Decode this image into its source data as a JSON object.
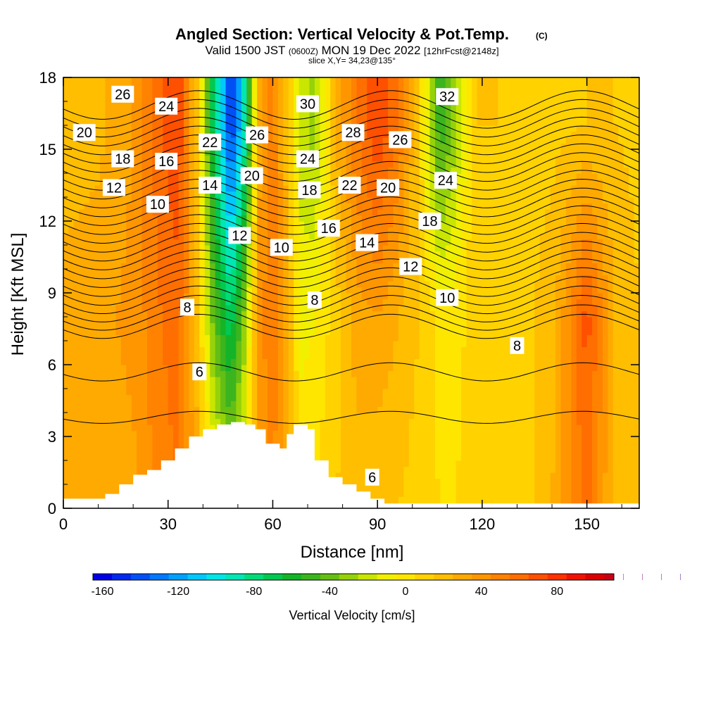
{
  "chart_data": {
    "type": "heatmap",
    "title": "Angled Section: Vertical Velocity & Pot.Temp.",
    "title_mark": "(C)",
    "subtitle_parts": [
      "Valid 1500 JST",
      "(0600Z)",
      "MON 19 Dec 2022",
      "[12hrFcst@2148z]"
    ],
    "slice_label": "slice X,Y= 34,23@135°",
    "xlabel": "Distance [nm]",
    "ylabel": "Height [Kft MSL]",
    "xlim": [
      0,
      165
    ],
    "ylim": [
      0,
      18
    ],
    "x_ticks": [
      0,
      30,
      60,
      90,
      120,
      150
    ],
    "y_ticks": [
      0,
      3,
      6,
      9,
      12,
      15,
      18
    ],
    "colorbar": {
      "label": "Vertical Velocity [cm/s]",
      "min": -165,
      "max": 110,
      "step": 10,
      "tick_values": [
        -160,
        -120,
        -80,
        -40,
        0,
        40,
        80
      ],
      "tick_labels": [
        "-160",
        "-120",
        "-80",
        "-40",
        "0",
        "40",
        "80"
      ],
      "colors": [
        "#0000e6",
        "#0028f0",
        "#0050f5",
        "#0078ff",
        "#00a0ff",
        "#00c8ff",
        "#00e6e6",
        "#00e6b4",
        "#00dc78",
        "#00c850",
        "#14b428",
        "#3cb41e",
        "#64be14",
        "#96d20a",
        "#c8e600",
        "#f0f000",
        "#ffe600",
        "#ffd200",
        "#ffbe00",
        "#ffaa00",
        "#ff9600",
        "#ff8200",
        "#ff6e00",
        "#ff5000",
        "#ff3200",
        "#f01400",
        "#dc0000",
        "#c80014",
        "#aa0050",
        "#8c0078",
        "#64008c",
        "#50008c"
      ]
    },
    "vertical_velocity_profile": {
      "x": [
        0,
        10,
        20,
        28,
        33,
        38,
        43,
        48,
        52,
        56,
        60,
        64,
        68,
        72,
        78,
        84,
        90,
        96,
        102,
        108,
        112,
        118,
        125,
        132,
        140,
        150,
        158,
        165
      ],
      "low_level": [
        25,
        28,
        32,
        50,
        55,
        30,
        0,
        -20,
        0,
        35,
        45,
        25,
        5,
        5,
        15,
        20,
        15,
        15,
        10,
        5,
        5,
        10,
        8,
        10,
        25,
        60,
        20,
        15
      ],
      "mid_level": [
        30,
        32,
        38,
        55,
        60,
        25,
        -40,
        -75,
        -30,
        40,
        55,
        30,
        -10,
        -5,
        10,
        30,
        35,
        25,
        15,
        0,
        0,
        10,
        10,
        12,
        20,
        70,
        25,
        15
      ],
      "upper_level": [
        18,
        22,
        35,
        65,
        75,
        20,
        -70,
        -150,
        -90,
        30,
        50,
        20,
        -20,
        -30,
        25,
        55,
        75,
        55,
        10,
        -55,
        -30,
        15,
        15,
        12,
        12,
        15,
        15,
        12
      ]
    },
    "potential_temperature_contours": {
      "unit": "C",
      "levels": [
        6,
        8,
        10,
        12,
        14,
        16,
        18,
        20,
        22,
        24,
        26,
        28,
        30,
        32
      ],
      "labels": [
        {
          "text": "20",
          "x": 6,
          "y": 15.7
        },
        {
          "text": "26",
          "x": 17,
          "y": 17.3
        },
        {
          "text": "24",
          "x": 29.5,
          "y": 16.8
        },
        {
          "text": "18",
          "x": 17,
          "y": 14.6
        },
        {
          "text": "16",
          "x": 29.5,
          "y": 14.5
        },
        {
          "text": "12",
          "x": 14.5,
          "y": 13.4
        },
        {
          "text": "10",
          "x": 27,
          "y": 12.7
        },
        {
          "text": "22",
          "x": 42,
          "y": 15.3
        },
        {
          "text": "14",
          "x": 42,
          "y": 13.5
        },
        {
          "text": "26",
          "x": 55.5,
          "y": 15.6
        },
        {
          "text": "20",
          "x": 54,
          "y": 13.9
        },
        {
          "text": "12",
          "x": 50.5,
          "y": 11.4
        },
        {
          "text": "30",
          "x": 70,
          "y": 16.9
        },
        {
          "text": "24",
          "x": 70,
          "y": 14.6
        },
        {
          "text": "18",
          "x": 70.5,
          "y": 13.3
        },
        {
          "text": "10",
          "x": 62.5,
          "y": 10.9
        },
        {
          "text": "28",
          "x": 83,
          "y": 15.7
        },
        {
          "text": "22",
          "x": 82,
          "y": 13.5
        },
        {
          "text": "16",
          "x": 76,
          "y": 11.7
        },
        {
          "text": "26",
          "x": 96.5,
          "y": 15.4
        },
        {
          "text": "20",
          "x": 93,
          "y": 13.4
        },
        {
          "text": "14",
          "x": 87,
          "y": 11.1
        },
        {
          "text": "32",
          "x": 110,
          "y": 17.2
        },
        {
          "text": "24",
          "x": 109.5,
          "y": 13.7
        },
        {
          "text": "18",
          "x": 105,
          "y": 12.0
        },
        {
          "text": "12",
          "x": 99.5,
          "y": 10.1
        },
        {
          "text": "10",
          "x": 110,
          "y": 8.8
        },
        {
          "text": "8",
          "x": 35.5,
          "y": 8.4
        },
        {
          "text": "8",
          "x": 72,
          "y": 8.7
        },
        {
          "text": "8",
          "x": 130,
          "y": 6.8
        },
        {
          "text": "6",
          "x": 39,
          "y": 5.7
        },
        {
          "text": "6",
          "x": 88.5,
          "y": 1.3
        }
      ]
    },
    "terrain": {
      "x": [
        0,
        8,
        12,
        16,
        20,
        24,
        28,
        32,
        36,
        40,
        44,
        48,
        52,
        55,
        58,
        62,
        64,
        66,
        70,
        72,
        76,
        80,
        84,
        88,
        92,
        165
      ],
      "height": [
        0.4,
        0.4,
        0.6,
        1.0,
        1.4,
        1.6,
        2.0,
        2.5,
        3.0,
        3.3,
        3.5,
        3.6,
        3.5,
        3.3,
        2.7,
        2.5,
        3.1,
        3.5,
        3.3,
        2.0,
        1.3,
        1.0,
        0.7,
        0.4,
        0.2,
        0.2
      ]
    }
  }
}
